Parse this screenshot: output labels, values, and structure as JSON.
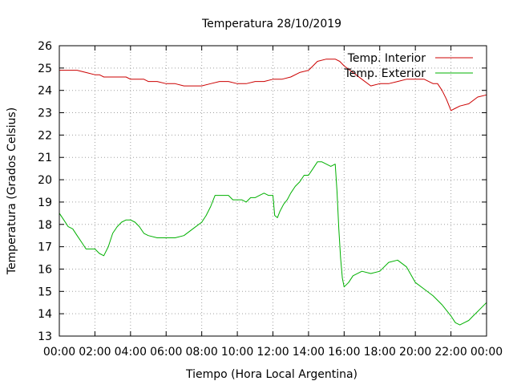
{
  "chart_data": {
    "type": "line",
    "title": "Temperatura 28/10/2019",
    "xlabel": "Tiempo (Hora Local Argentina)",
    "ylabel": "Temperatura (Grados Celsius)",
    "xlim": [
      0,
      24
    ],
    "ylim": [
      13,
      26
    ],
    "x_tick_labels": [
      "00:00",
      "02:00",
      "04:00",
      "06:00",
      "08:00",
      "10:00",
      "12:00",
      "14:00",
      "16:00",
      "18:00",
      "20:00",
      "22:00",
      "00:00"
    ],
    "y_tick_labels": [
      "13",
      "14",
      "15",
      "16",
      "17",
      "18",
      "19",
      "20",
      "21",
      "22",
      "23",
      "24",
      "25",
      "26"
    ],
    "grid": true,
    "legend_position": "top-right",
    "series": [
      {
        "name": "Temp. Interior",
        "color": "#cc0000",
        "x": [
          0,
          0.5,
          1,
          1.5,
          2,
          2.25,
          2.5,
          3,
          3.5,
          3.75,
          4,
          4.5,
          4.75,
          5,
          5.5,
          6,
          6.5,
          7,
          7.5,
          8,
          8.5,
          9,
          9.5,
          10,
          10.5,
          11,
          11.5,
          12,
          12.5,
          13,
          13.5,
          14,
          14.25,
          14.5,
          15,
          15.5,
          15.75,
          16,
          16.5,
          17,
          17.5,
          18,
          18.5,
          19,
          19.5,
          20,
          20.5,
          21,
          21.25,
          21.5,
          21.75,
          22,
          22.25,
          22.5,
          23,
          23.5,
          24
        ],
        "y": [
          24.9,
          24.9,
          24.9,
          24.8,
          24.7,
          24.7,
          24.6,
          24.6,
          24.6,
          24.6,
          24.5,
          24.5,
          24.5,
          24.4,
          24.4,
          24.3,
          24.3,
          24.2,
          24.2,
          24.2,
          24.3,
          24.4,
          24.4,
          24.3,
          24.3,
          24.4,
          24.4,
          24.5,
          24.5,
          24.6,
          24.8,
          24.9,
          25.1,
          25.3,
          25.4,
          25.4,
          25.3,
          25.1,
          24.8,
          24.5,
          24.2,
          24.3,
          24.3,
          24.4,
          24.5,
          24.5,
          24.5,
          24.3,
          24.3,
          24.0,
          23.6,
          23.1,
          23.2,
          23.3,
          23.4,
          23.7,
          23.8
        ]
      },
      {
        "name": "Temp. Exterior",
        "color": "#00b000",
        "x": [
          0,
          0.25,
          0.5,
          0.75,
          1,
          1.25,
          1.5,
          1.75,
          2,
          2.25,
          2.5,
          2.75,
          3,
          3.25,
          3.5,
          3.75,
          4,
          4.25,
          4.5,
          4.75,
          5,
          5.5,
          6,
          6.5,
          7,
          7.5,
          8,
          8.25,
          8.5,
          8.75,
          9,
          9.25,
          9.5,
          9.75,
          10,
          10.25,
          10.5,
          10.75,
          11,
          11.25,
          11.5,
          11.75,
          12,
          12.1,
          12.25,
          12.4,
          12.6,
          12.8,
          13,
          13.25,
          13.5,
          13.75,
          14,
          14.25,
          14.5,
          14.75,
          15,
          15.25,
          15.5,
          15.6,
          15.7,
          15.8,
          15.9,
          16,
          16.25,
          16.5,
          17,
          17.5,
          18,
          18.5,
          19,
          19.5,
          20,
          20.5,
          21,
          21.5,
          22,
          22.25,
          22.5,
          22.75,
          23,
          23.25,
          23.5,
          23.75,
          24
        ],
        "y": [
          18.5,
          18.2,
          17.9,
          17.8,
          17.5,
          17.2,
          16.9,
          16.9,
          16.9,
          16.7,
          16.6,
          17.0,
          17.6,
          17.9,
          18.1,
          18.2,
          18.2,
          18.1,
          17.9,
          17.6,
          17.5,
          17.4,
          17.4,
          17.4,
          17.5,
          17.8,
          18.1,
          18.4,
          18.8,
          19.3,
          19.3,
          19.3,
          19.3,
          19.1,
          19.1,
          19.1,
          19.0,
          19.2,
          19.2,
          19.3,
          19.4,
          19.3,
          19.3,
          18.4,
          18.3,
          18.6,
          18.9,
          19.1,
          19.4,
          19.7,
          19.9,
          20.2,
          20.2,
          20.5,
          20.8,
          20.8,
          20.7,
          20.6,
          20.7,
          19.5,
          17.8,
          16.5,
          15.6,
          15.2,
          15.4,
          15.7,
          15.9,
          15.8,
          15.9,
          16.3,
          16.4,
          16.1,
          15.4,
          15.1,
          14.8,
          14.4,
          13.9,
          13.6,
          13.5,
          13.6,
          13.7,
          13.9,
          14.1,
          14.3,
          14.5
        ]
      }
    ]
  }
}
